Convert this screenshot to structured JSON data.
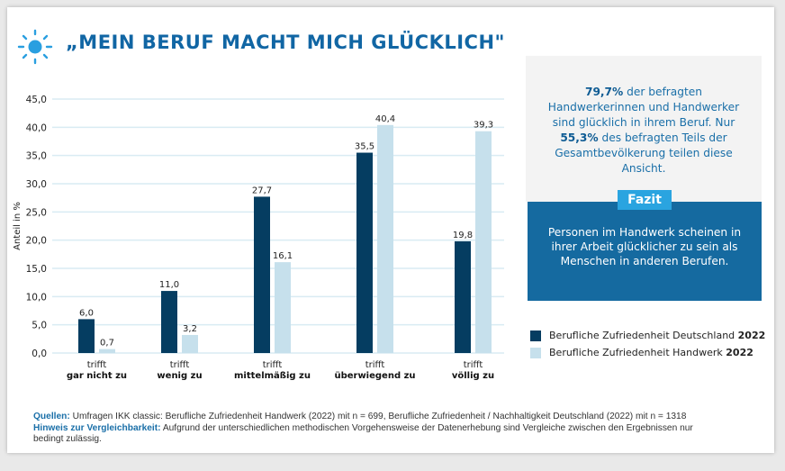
{
  "header": {
    "title": "„MEIN BERUF MACHT MICH GLÜCKLICH\"",
    "icon": "sun-icon"
  },
  "info": {
    "pct1": "79,7%",
    "text1": " der befragten Handwerkerinnen und Handwer­ker sind glücklich in ihrem Beruf. Nur ",
    "pct2": "55,3%",
    "text2": " des befragten Teils der Gesamtbevölkerung teilen diese Ansicht."
  },
  "fazit": {
    "label": "Fazit",
    "text": "Personen im Handwerk scheinen in ihrer Arbeit glücklicher zu sein als Menschen in anderen Berufen."
  },
  "notes": {
    "sources_label": "Quellen:",
    "sources": " Umfragen IKK classic: Berufliche Zufriedenheit Handwerk (2022) mit n = 699, Berufliche Zufriedenheit / Nachhaltigkeit Deutschland (2022) mit n = 1318",
    "hint_label": "Hinweis zur Vergleichbarkeit:",
    "hint": " Aufgrund der unterschiedlichen methodischen Vorgehensweise der Datenerhebung sind Vergleiche zwischen den Ergebnissen nur bedingt zulässig."
  },
  "chart_data": {
    "type": "bar",
    "ylabel": "Anteil in %",
    "ylim": [
      0,
      45
    ],
    "yticks": [
      "0,0",
      "5,0",
      "10,0",
      "15,0",
      "20,0",
      "25,0",
      "30,0",
      "35,0",
      "40,0",
      "45,0"
    ],
    "grid": true,
    "legend_position": "right",
    "categories": [
      {
        "top": "trifft",
        "bottom": "gar nicht zu"
      },
      {
        "top": "trifft",
        "bottom": "wenig zu"
      },
      {
        "top": "trifft",
        "bottom": "mittelmäßig zu"
      },
      {
        "top": "trifft",
        "bottom": "überwiegend zu"
      },
      {
        "top": "trifft",
        "bottom": "völlig zu"
      }
    ],
    "series": [
      {
        "name": "Berufliche Zufriedenheit Deutschland",
        "year": "2022",
        "color": "#053d61",
        "values": [
          6.0,
          11.0,
          27.7,
          35.5,
          19.8
        ],
        "labels": [
          "6,0",
          "11,0",
          "27,7",
          "35,5",
          "19,8"
        ]
      },
      {
        "name": "Berufliche Zufriedenheit Handwerk",
        "year": "2022",
        "color": "#c6e0ec",
        "values": [
          0.7,
          3.2,
          16.1,
          40.4,
          39.3
        ],
        "labels": [
          "0,7",
          "3,2",
          "16,1",
          "40,4",
          "39,3"
        ]
      }
    ]
  }
}
